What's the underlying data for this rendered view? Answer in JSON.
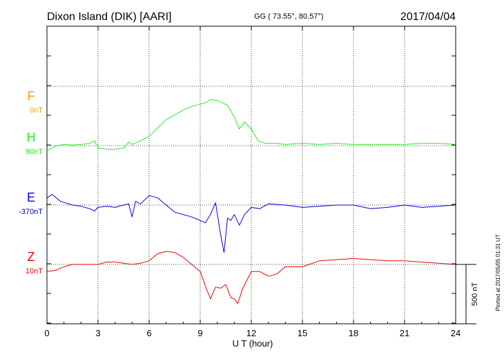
{
  "header": {
    "station": "Dixon Island (DIK)  [AARI]",
    "coords": "GG ( 73.55°,  80.57°)",
    "date": "2017/04/04"
  },
  "footer": {
    "plotted": "Plotted at 2017/05/05 01:31  UT"
  },
  "chart_data": {
    "type": "line",
    "title": "Dixon Island (DIK)  [AARI]",
    "xlabel": "U T (hour)",
    "ylabel": "",
    "xlim": [
      0,
      24
    ],
    "xticks": [
      0,
      3,
      6,
      9,
      12,
      15,
      18,
      21,
      24
    ],
    "grid": true,
    "scale_bar": {
      "label": "500 nT",
      "value_nT": 500
    },
    "series": [
      {
        "name": "F",
        "baseline_label": "0nT",
        "color": "#f5a000",
        "x": [],
        "y": []
      },
      {
        "name": "H",
        "baseline_label": "90nT",
        "color": "#22ee22",
        "x": [
          0,
          0.3,
          0.6,
          1,
          1.5,
          2,
          2.5,
          2.8,
          3,
          3.5,
          4,
          4.5,
          4.8,
          5,
          5.5,
          6,
          6.5,
          7,
          7.5,
          8,
          8.5,
          9,
          9.3,
          9.6,
          10,
          10.3,
          10.6,
          11,
          11.3,
          11.6,
          12,
          12.4,
          12.8,
          13.5,
          14,
          15,
          16,
          17,
          18,
          19,
          20,
          21,
          22,
          23,
          24
        ],
        "y": [
          -40,
          -20,
          0,
          10,
          5,
          10,
          20,
          40,
          -20,
          -30,
          -30,
          -20,
          30,
          10,
          40,
          80,
          150,
          220,
          260,
          300,
          330,
          350,
          360,
          390,
          380,
          360,
          340,
          240,
          140,
          200,
          140,
          40,
          20,
          20,
          10,
          20,
          10,
          20,
          10,
          10,
          10,
          10,
          20,
          20,
          10
        ]
      },
      {
        "name": "E",
        "baseline_label": "-370nT",
        "color": "#0000dd",
        "x": [
          0,
          0.3,
          0.8,
          1.5,
          2,
          2.5,
          2.8,
          3,
          3.5,
          4,
          4.5,
          4.8,
          5,
          5.2,
          5.5,
          6,
          6.5,
          7,
          7.5,
          8,
          8.5,
          9,
          9.3,
          9.6,
          9.9,
          10.2,
          10.4,
          10.6,
          10.8,
          11,
          11.3,
          11.6,
          12,
          12.5,
          13,
          14,
          15,
          16,
          17,
          18,
          19,
          20,
          21,
          22,
          23,
          24
        ],
        "y": [
          60,
          90,
          30,
          0,
          -10,
          -30,
          -50,
          -20,
          -10,
          -20,
          0,
          10,
          -100,
          30,
          10,
          80,
          60,
          0,
          -60,
          -80,
          -100,
          -130,
          -150,
          -80,
          20,
          -250,
          -400,
          -110,
          -130,
          -80,
          -170,
          -80,
          -20,
          -30,
          10,
          0,
          -20,
          -10,
          0,
          0,
          -30,
          -20,
          0,
          -20,
          -10,
          0
        ]
      },
      {
        "name": "Z",
        "baseline_label": "10nT",
        "color": "#ee0000",
        "x": [
          0,
          0.5,
          1,
          1.5,
          2,
          2.5,
          3,
          3.5,
          4,
          4.5,
          5,
          5.5,
          6,
          6.5,
          7,
          7.5,
          8,
          8.5,
          9,
          9.3,
          9.6,
          9.9,
          10.2,
          10.5,
          10.8,
          11,
          11.2,
          11.5,
          12,
          12.5,
          13,
          13.5,
          14,
          15,
          16,
          17,
          18,
          19,
          20,
          21,
          22,
          23,
          24
        ],
        "y": [
          -60,
          -50,
          -20,
          0,
          0,
          0,
          0,
          20,
          20,
          10,
          0,
          10,
          30,
          90,
          110,
          100,
          60,
          0,
          -60,
          -180,
          -290,
          -190,
          -200,
          -170,
          -280,
          -290,
          -330,
          -200,
          -60,
          -60,
          -100,
          -80,
          -20,
          -20,
          30,
          40,
          50,
          40,
          30,
          30,
          20,
          10,
          0
        ]
      }
    ]
  }
}
